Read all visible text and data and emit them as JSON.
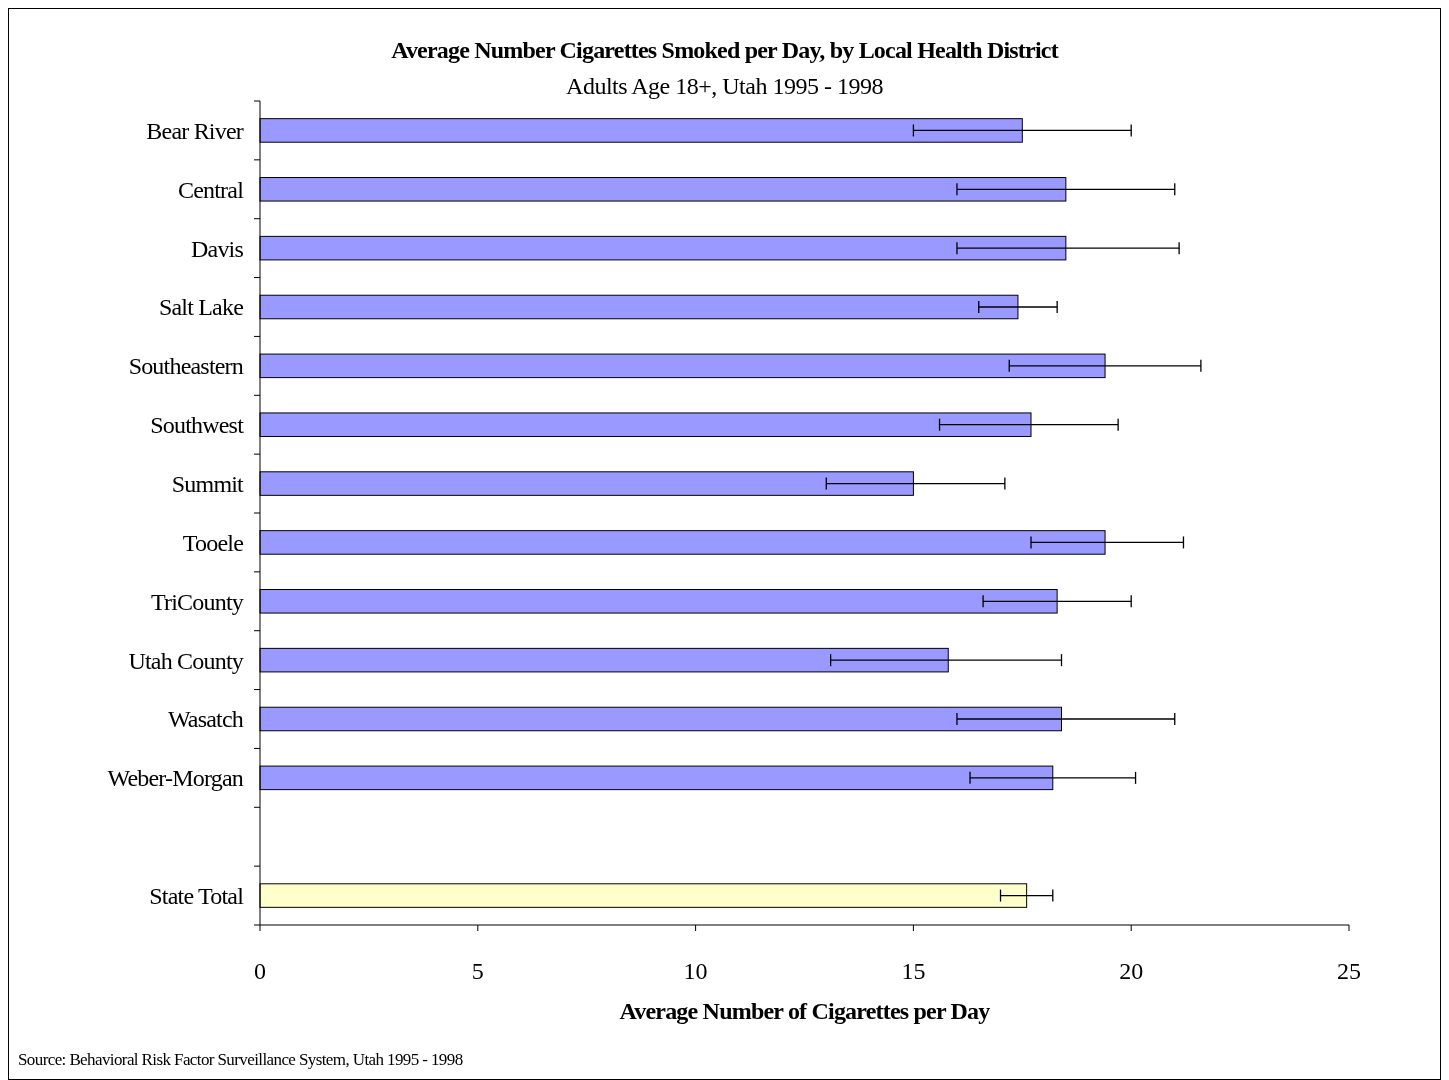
{
  "chart_data": {
    "type": "bar",
    "orientation": "horizontal",
    "title": "Average Number Cigarettes Smoked per Day, by Local Health District",
    "subtitle": "Adults Age 18+, Utah 1995 - 1998",
    "xlabel": "Average Number of Cigarettes per Day",
    "categories": [
      "Bear River",
      "Central",
      "Davis",
      "Salt Lake",
      "Southeastern",
      "Southwest",
      "Summit",
      "Tooele",
      "TriCounty",
      "Utah County",
      "Wasatch",
      "Weber-Morgan",
      null,
      "State Total"
    ],
    "values": [
      17.5,
      18.5,
      18.5,
      17.4,
      19.4,
      17.7,
      15.0,
      19.4,
      18.3,
      15.8,
      18.4,
      18.2,
      null,
      17.6
    ],
    "errors": [
      [
        15.0,
        20.0
      ],
      [
        16.0,
        21.0
      ],
      [
        16.0,
        21.1
      ],
      [
        16.5,
        18.3
      ],
      [
        17.2,
        21.6
      ],
      [
        15.6,
        19.7
      ],
      [
        13.0,
        17.1
      ],
      [
        17.7,
        21.2
      ],
      [
        16.6,
        20.0
      ],
      [
        13.1,
        18.4
      ],
      [
        16.0,
        21.0
      ],
      [
        16.3,
        20.1
      ],
      null,
      [
        17.0,
        18.2
      ]
    ],
    "colors": [
      "#9999ff",
      "#9999ff",
      "#9999ff",
      "#9999ff",
      "#9999ff",
      "#9999ff",
      "#9999ff",
      "#9999ff",
      "#9999ff",
      "#9999ff",
      "#9999ff",
      "#9999ff",
      null,
      "#ffffcc"
    ],
    "xlim": [
      0,
      25
    ],
    "xticks": [
      0,
      5,
      10,
      15,
      20,
      25
    ],
    "grid": false,
    "annotations": [
      "Source: Behavioral Risk Factor Surveillance System, Utah 1995 - 1998"
    ]
  }
}
